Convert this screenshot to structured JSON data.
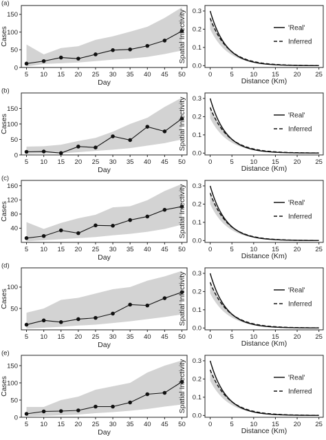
{
  "figure": {
    "cases_ylabel": "Cases",
    "day_xlabel": "Day",
    "inf_ylabel": "Spatial Infectivity",
    "inf_xlabel": "Distance (Km)",
    "legend_real": "'Real'",
    "legend_inferred": "Inferred"
  },
  "chart_data": [
    {
      "type": "line",
      "panel": "(a)",
      "xlabel": "Day",
      "ylabel": "Cases",
      "x": [
        5,
        10,
        15,
        20,
        25,
        30,
        35,
        40,
        45,
        50
      ],
      "xticks": [
        5,
        10,
        15,
        20,
        25,
        30,
        35,
        40,
        45,
        50
      ],
      "xlim": [
        3.5,
        51.5
      ],
      "ylim": [
        0,
        175
      ],
      "yticks": [
        0,
        50,
        100,
        150
      ],
      "series": [
        {
          "values": [
            11,
            18,
            28,
            25,
            37,
            49,
            51,
            61,
            76,
            103
          ]
        }
      ],
      "band": {
        "upper": [
          65,
          37,
          55,
          60,
          78,
          88,
          101,
          115,
          140,
          170
        ],
        "lower": [
          3,
          10,
          12,
          14,
          18,
          22,
          25,
          30,
          38,
          48
        ],
        "color": "#d3d3d3"
      }
    },
    {
      "type": "line",
      "panel": "(b)",
      "xlabel": "Day",
      "ylabel": "Cases",
      "x": [
        5,
        10,
        15,
        20,
        25,
        30,
        35,
        40,
        45,
        50
      ],
      "xticks": [
        5,
        10,
        15,
        20,
        25,
        30,
        35,
        40,
        45,
        50
      ],
      "xlim": [
        3.5,
        51.5
      ],
      "ylim": [
        0,
        200
      ],
      "yticks": [
        0,
        50,
        100,
        150
      ],
      "series": [
        {
          "values": [
            10,
            11,
            6,
            27,
            24,
            60,
            48,
            91,
            76,
            117
          ]
        }
      ],
      "band": {
        "upper": [
          27,
          28,
          33,
          45,
          55,
          75,
          100,
          120,
          155,
          185
        ],
        "lower": [
          4,
          5,
          5,
          9,
          13,
          17,
          22,
          30,
          38,
          50
        ],
        "color": "#d3d3d3"
      }
    },
    {
      "type": "line",
      "panel": "(c)",
      "xlabel": "Day",
      "ylabel": "Cases",
      "x": [
        5,
        10,
        15,
        20,
        25,
        30,
        35,
        40,
        45,
        50
      ],
      "xticks": [
        5,
        10,
        15,
        20,
        25,
        30,
        35,
        40,
        45,
        50
      ],
      "xlim": [
        3.5,
        51.5
      ],
      "ylim": [
        0,
        175
      ],
      "yticks": [
        40,
        80,
        120,
        160
      ],
      "series": [
        {
          "values": [
            12,
            18,
            34,
            26,
            48,
            47,
            63,
            73,
            92,
            101
          ]
        }
      ],
      "band": {
        "upper": [
          57,
          38,
          55,
          68,
          78,
          99,
          102,
          119,
          145,
          165
        ],
        "lower": [
          3,
          6,
          9,
          12,
          15,
          20,
          24,
          30,
          38,
          50
        ],
        "color": "#d3d3d3"
      }
    },
    {
      "type": "line",
      "panel": "(d)",
      "xlabel": "Day",
      "ylabel": "Cases",
      "x": [
        5,
        10,
        15,
        20,
        25,
        30,
        35,
        40,
        45,
        50
      ],
      "xticks": [
        5,
        10,
        15,
        20,
        25,
        30,
        35,
        40,
        45,
        50
      ],
      "xlim": [
        3.5,
        51.5
      ],
      "ylim": [
        0,
        145
      ],
      "yticks": [
        50,
        100
      ],
      "series": [
        {
          "values": [
            12,
            22,
            18,
            25,
            28,
            38,
            59,
            57,
            74,
            88
          ]
        }
      ],
      "band": {
        "upper": [
          40,
          50,
          70,
          75,
          85,
          95,
          100,
          115,
          125,
          138
        ],
        "lower": [
          3,
          5,
          7,
          10,
          12,
          16,
          20,
          25,
          30,
          36
        ],
        "color": "#d3d3d3"
      }
    },
    {
      "type": "line",
      "panel": "(e)",
      "xlabel": "Day",
      "ylabel": "Cases",
      "x": [
        5,
        10,
        15,
        20,
        25,
        30,
        35,
        40,
        45,
        50
      ],
      "xticks": [
        5,
        10,
        15,
        20,
        25,
        30,
        35,
        40,
        45,
        50
      ],
      "xlim": [
        3.5,
        51.5
      ],
      "ylim": [
        0,
        180
      ],
      "yticks": [
        0,
        50,
        100,
        150
      ],
      "series": [
        {
          "values": [
            10,
            17,
            18,
            20,
            31,
            31,
            43,
            67,
            71,
            103
          ]
        }
      ],
      "band": {
        "upper": [
          30,
          30,
          50,
          60,
          80,
          90,
          100,
          130,
          150,
          165
        ],
        "lower": [
          3,
          4,
          6,
          8,
          12,
          15,
          19,
          24,
          31,
          37
        ],
        "color": "#d3d3d3"
      }
    },
    {
      "type": "line",
      "panel": "(a) right",
      "xlabel": "Distance (Km)",
      "ylabel": "Spatial Infectivity",
      "xlim": [
        -1.2,
        26
      ],
      "ylim": [
        -0.01,
        0.33
      ],
      "xticks": [
        0,
        5,
        10,
        15,
        20,
        25
      ],
      "yticks": [
        0.0,
        0.1,
        0.2,
        0.3
      ],
      "decay": {
        "real": {
          "a": 0.3,
          "k": 0.275
        },
        "inferred": {
          "a": 0.26,
          "k": 0.245
        },
        "band_upper_a": 0.27,
        "band_lower_a": 0.2
      },
      "legend": [
        "'Real'",
        "Inferred"
      ],
      "legend_position": "top-right"
    },
    {
      "type": "line",
      "panel": "(b) right",
      "xlabel": "Distance (Km)",
      "ylabel": "Spatial Infectivity",
      "xlim": [
        -1.2,
        26
      ],
      "ylim": [
        -0.01,
        0.33
      ],
      "xticks": [
        0,
        5,
        10,
        15,
        20,
        25
      ],
      "yticks": [
        0.0,
        0.1,
        0.2,
        0.3
      ],
      "decay": {
        "real": {
          "a": 0.3,
          "k": 0.275
        },
        "inferred": {
          "a": 0.25,
          "k": 0.24
        },
        "band_upper_a": 0.26,
        "band_lower_a": 0.19
      },
      "legend": [
        "'Real'",
        "Inferred"
      ],
      "legend_position": "top-right"
    },
    {
      "type": "line",
      "panel": "(c) right",
      "xlabel": "Distance (Km)",
      "ylabel": "Spatial Infectivity",
      "xlim": [
        -1.2,
        26
      ],
      "ylim": [
        -0.01,
        0.33
      ],
      "xticks": [
        0,
        5,
        10,
        15,
        20,
        25
      ],
      "yticks": [
        0.0,
        0.1,
        0.2,
        0.3
      ],
      "decay": {
        "real": {
          "a": 0.3,
          "k": 0.275
        },
        "inferred": {
          "a": 0.26,
          "k": 0.25
        },
        "band_upper_a": 0.27,
        "band_lower_a": 0.2
      },
      "legend": [
        "'Real'",
        "Inferred"
      ],
      "legend_position": "top-right"
    },
    {
      "type": "line",
      "panel": "(d) right",
      "xlabel": "Distance (Km)",
      "ylabel": "Spatial Infectivity",
      "xlim": [
        -1.2,
        26
      ],
      "ylim": [
        -0.01,
        0.33
      ],
      "xticks": [
        0,
        5,
        10,
        15,
        20,
        25
      ],
      "yticks": [
        0.0,
        0.1,
        0.2,
        0.3
      ],
      "decay": {
        "real": {
          "a": 0.3,
          "k": 0.275
        },
        "inferred": {
          "a": 0.25,
          "k": 0.24
        },
        "band_upper_a": 0.26,
        "band_lower_a": 0.19
      },
      "legend": [
        "'Real'",
        "Inferred"
      ],
      "legend_position": "top-right"
    },
    {
      "type": "line",
      "panel": "(e) right",
      "xlabel": "Distance (Km)",
      "ylabel": "Spatial Infectivity",
      "xlim": [
        -1.2,
        26
      ],
      "ylim": [
        -0.01,
        0.33
      ],
      "xticks": [
        0,
        5,
        10,
        15,
        20,
        25
      ],
      "yticks": [
        0.0,
        0.1,
        0.2,
        0.3
      ],
      "decay": {
        "real": {
          "a": 0.3,
          "k": 0.275
        },
        "inferred": {
          "a": 0.25,
          "k": 0.24
        },
        "band_upper_a": 0.26,
        "band_lower_a": 0.19
      },
      "legend": [
        "'Real'",
        "Inferred"
      ],
      "legend_position": "top-right"
    }
  ]
}
